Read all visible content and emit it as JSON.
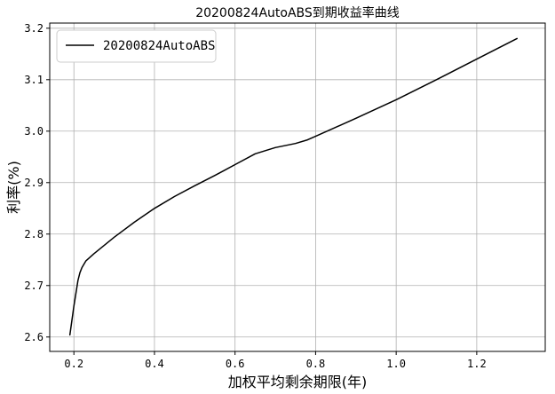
{
  "chart_data": {
    "type": "line",
    "title": "20200824AutoABS到期收益率曲线",
    "xlabel": "加权平均剩余期限(年)",
    "ylabel": "利率(%)",
    "xlim": [
      0.14,
      1.37
    ],
    "ylim": [
      2.572,
      3.21
    ],
    "xticks": [
      0.2,
      0.4,
      0.6,
      0.8,
      1.0,
      1.2
    ],
    "xtick_labels": [
      "0.2",
      "0.4",
      "0.6",
      "0.8",
      "1.0",
      "1.2"
    ],
    "yticks": [
      2.6,
      2.7,
      2.8,
      2.9,
      3.0,
      3.1,
      3.2
    ],
    "ytick_labels": [
      "2.6",
      "2.7",
      "2.8",
      "2.9",
      "3.0",
      "3.1",
      "3.2"
    ],
    "grid": true,
    "legend_position": "upper-left",
    "series": [
      {
        "name": "20200824AutoABS",
        "color": "#000000",
        "x": [
          0.19,
          0.2,
          0.21,
          0.215,
          0.22,
          0.23,
          0.25,
          0.3,
          0.35,
          0.4,
          0.45,
          0.5,
          0.55,
          0.6,
          0.65,
          0.7,
          0.75,
          0.78,
          0.8,
          0.9,
          1.0,
          1.1,
          1.2,
          1.3
        ],
        "y": [
          2.604,
          2.66,
          2.71,
          2.725,
          2.735,
          2.748,
          2.762,
          2.794,
          2.823,
          2.85,
          2.873,
          2.894,
          2.914,
          2.935,
          2.956,
          2.968,
          2.976,
          2.983,
          2.99,
          3.025,
          3.061,
          3.1,
          3.14,
          3.18
        ]
      }
    ]
  }
}
